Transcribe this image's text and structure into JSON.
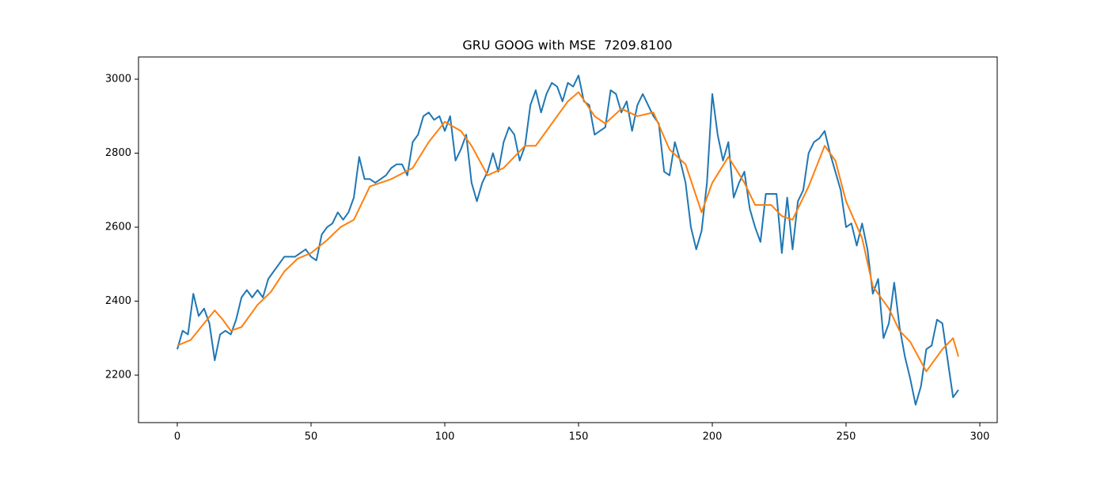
{
  "chart_data": {
    "type": "line",
    "title": "GRU GOOG with MSE  7209.8100",
    "xlim": [
      -14.5,
      306.5
    ],
    "xticks": [
      0,
      50,
      100,
      150,
      200,
      250,
      300
    ],
    "ylim": [
      2071.7,
      3060
    ],
    "yticks": [
      2200,
      2400,
      2600,
      2800,
      3000
    ],
    "series": [
      {
        "color": "#1f77b4",
        "x": [
          0,
          2,
          4,
          6,
          8,
          10,
          12,
          14,
          16,
          18,
          20,
          22,
          24,
          26,
          28,
          30,
          32,
          34,
          36,
          38,
          40,
          42,
          44,
          46,
          48,
          50,
          52,
          54,
          56,
          58,
          60,
          62,
          64,
          66,
          68,
          70,
          72,
          74,
          76,
          78,
          80,
          82,
          84,
          86,
          88,
          90,
          92,
          94,
          96,
          98,
          100,
          102,
          104,
          106,
          108,
          110,
          112,
          114,
          116,
          118,
          120,
          122,
          124,
          126,
          128,
          130,
          132,
          134,
          136,
          138,
          140,
          142,
          144,
          146,
          148,
          150,
          152,
          154,
          156,
          158,
          160,
          162,
          164,
          166,
          168,
          170,
          172,
          174,
          176,
          178,
          180,
          182,
          184,
          186,
          188,
          190,
          192,
          194,
          196,
          198,
          200,
          202,
          204,
          206,
          208,
          210,
          212,
          214,
          216,
          218,
          220,
          222,
          224,
          226,
          228,
          230,
          232,
          234,
          236,
          238,
          240,
          242,
          244,
          246,
          248,
          250,
          252,
          254,
          256,
          258,
          260,
          262,
          264,
          266,
          268,
          270,
          272,
          274,
          276,
          278,
          280,
          282,
          284,
          286,
          288,
          290,
          292
        ],
        "values": [
          2270,
          2320,
          2310,
          2420,
          2360,
          2380,
          2340,
          2240,
          2310,
          2320,
          2310,
          2350,
          2410,
          2430,
          2410,
          2430,
          2410,
          2460,
          2480,
          2500,
          2520,
          2520,
          2520,
          2530,
          2540,
          2520,
          2510,
          2580,
          2600,
          2610,
          2640,
          2620,
          2640,
          2680,
          2790,
          2730,
          2730,
          2720,
          2730,
          2740,
          2760,
          2770,
          2770,
          2740,
          2830,
          2850,
          2900,
          2910,
          2890,
          2900,
          2860,
          2900,
          2780,
          2810,
          2850,
          2720,
          2670,
          2720,
          2750,
          2800,
          2750,
          2830,
          2870,
          2850,
          2780,
          2820,
          2930,
          2970,
          2910,
          2960,
          2990,
          2980,
          2940,
          2990,
          2980,
          3010,
          2940,
          2930,
          2850,
          2860,
          2870,
          2970,
          2960,
          2910,
          2940,
          2860,
          2930,
          2960,
          2930,
          2900,
          2880,
          2750,
          2740,
          2830,
          2780,
          2720,
          2600,
          2540,
          2590,
          2720,
          2960,
          2850,
          2780,
          2830,
          2680,
          2720,
          2750,
          2650,
          2600,
          2560,
          2690,
          2690,
          2690,
          2530,
          2680,
          2540,
          2670,
          2700,
          2800,
          2830,
          2840,
          2860,
          2800,
          2750,
          2700,
          2600,
          2610,
          2550,
          2610,
          2540,
          2420,
          2460,
          2300,
          2340,
          2450,
          2330,
          2250,
          2190,
          2120,
          2170,
          2270,
          2280,
          2350,
          2340,
          2240,
          2140,
          2160
        ]
      },
      {
        "color": "#ff7f0e",
        "x": [
          0,
          5,
          10,
          14,
          17,
          20,
          24,
          30,
          35,
          40,
          45,
          50,
          56,
          61,
          66,
          72,
          80,
          88,
          94,
          100,
          106,
          110,
          116,
          122,
          130,
          134,
          140,
          146,
          150,
          156,
          160,
          166,
          172,
          178,
          184,
          190,
          196,
          200,
          206,
          212,
          216,
          222,
          226,
          230,
          236,
          242,
          246,
          250,
          256,
          260,
          266,
          270,
          274,
          280,
          286,
          290,
          292
        ],
        "values": [
          2280,
          2295,
          2340,
          2375,
          2350,
          2320,
          2330,
          2390,
          2425,
          2480,
          2515,
          2530,
          2565,
          2600,
          2620,
          2710,
          2730,
          2760,
          2830,
          2885,
          2860,
          2820,
          2740,
          2760,
          2820,
          2820,
          2880,
          2940,
          2965,
          2900,
          2880,
          2920,
          2900,
          2910,
          2810,
          2770,
          2640,
          2720,
          2790,
          2720,
          2660,
          2660,
          2630,
          2620,
          2710,
          2820,
          2780,
          2670,
          2570,
          2440,
          2380,
          2320,
          2290,
          2210,
          2270,
          2300,
          2250
        ]
      }
    ]
  }
}
